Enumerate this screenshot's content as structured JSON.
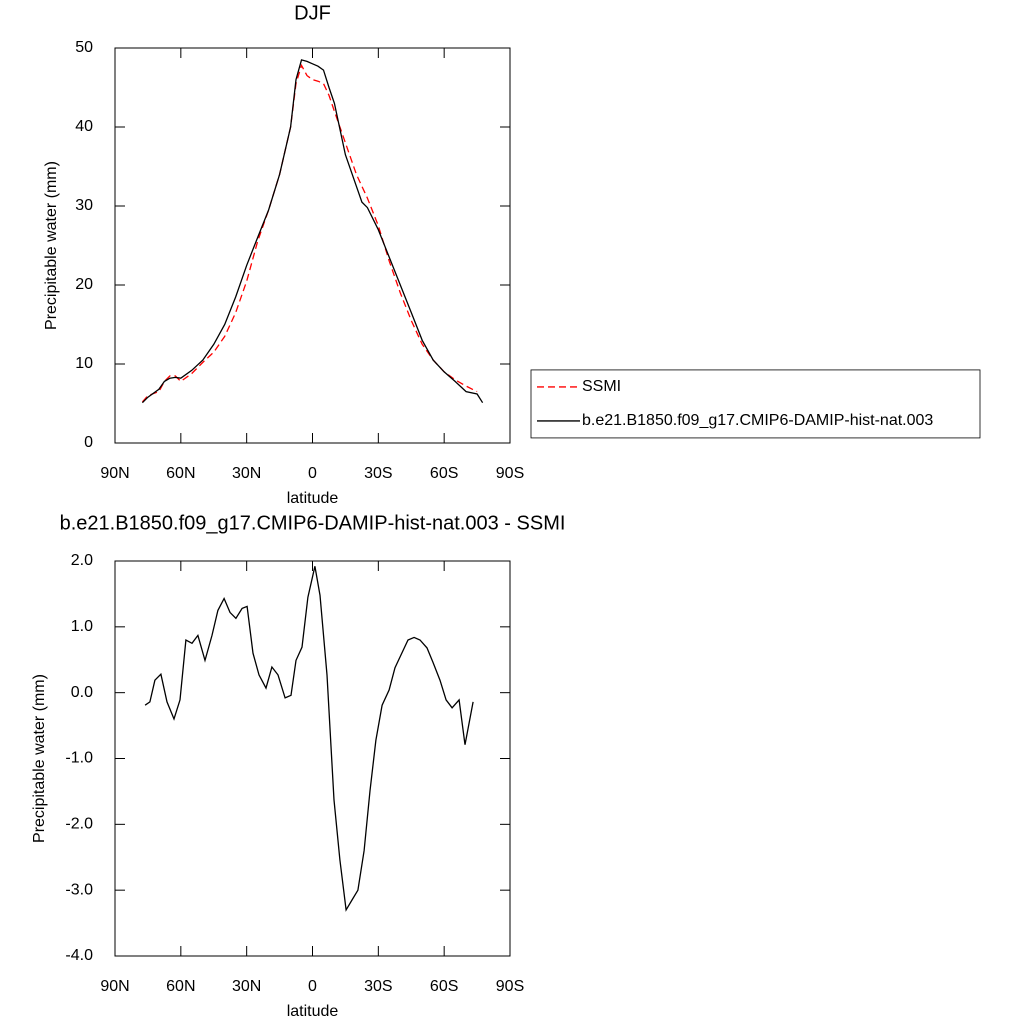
{
  "chart_data": [
    {
      "type": "line",
      "title": "DJF",
      "xlabel": "latitude",
      "ylabel": "Precipitable water (mm)",
      "x": [
        77.5,
        75,
        70,
        67.5,
        65,
        62.5,
        60,
        55,
        50,
        45,
        40,
        35,
        30,
        25,
        20,
        15,
        10,
        7.5,
        5,
        2.5,
        0,
        -2.5,
        -5,
        -7.5,
        -10,
        -15,
        -20,
        -22.5,
        -25,
        -30,
        -35,
        -40,
        -45,
        -50,
        -55,
        -60,
        -65,
        -70,
        -75,
        -77.5
      ],
      "series": [
        {
          "name": "SSMI",
          "color": "#ff0000",
          "dashed": true,
          "values": [
            5.2,
            6.0,
            6.5,
            7.8,
            8.5,
            8.5,
            7.8,
            8.8,
            10.2,
            11.5,
            13.5,
            16.5,
            20.5,
            25.5,
            29.5,
            34,
            40,
            45.5,
            47.8,
            46.5,
            46,
            45.8,
            45.5,
            44,
            42,
            38,
            34,
            32.5,
            31,
            27.5,
            23,
            19,
            15.5,
            12.5,
            10.5,
            9,
            8,
            7.2,
            6.5,
            null
          ]
        },
        {
          "name": "b.e21.B1850.f09_g17.CMIP6-DAMIP-hist-nat.003",
          "color": "#000000",
          "dashed": false,
          "values": [
            5.1,
            5.8,
            6.8,
            7.8,
            8.2,
            8.3,
            8.2,
            9.2,
            10.5,
            12.5,
            15,
            18.5,
            22.5,
            26,
            29.5,
            34,
            40,
            46,
            48.5,
            48.3,
            48,
            47.7,
            47.2,
            45,
            43,
            36.5,
            32.5,
            30.5,
            29.8,
            27,
            23.5,
            20,
            16.5,
            13,
            10.5,
            9,
            7.8,
            6.5,
            6.2,
            5.1
          ]
        }
      ],
      "xlim": [
        90,
        -90
      ],
      "xticks": [
        {
          "value": 90,
          "label": "90N"
        },
        {
          "value": 60,
          "label": "60N"
        },
        {
          "value": 30,
          "label": "30N"
        },
        0,
        {
          "value": -30,
          "label": "30S"
        },
        {
          "value": -60,
          "label": "60S"
        },
        {
          "value": -90,
          "label": "90S"
        }
      ],
      "ylim": [
        0,
        50
      ],
      "yticks": [
        0,
        10,
        20,
        30,
        40,
        50
      ],
      "legend": "right"
    },
    {
      "type": "line",
      "title": "b.e21.B1850.f09_g17.CMIP6-DAMIP-hist-nat.003 - SSMI",
      "xlabel": "latitude",
      "ylabel": "Precipitable water (mm)",
      "x": [
        76.3,
        74.1,
        71.8,
        69.1,
        66.3,
        63.1,
        60.4,
        57.7,
        54.9,
        52.2,
        49.0,
        45.8,
        43.1,
        40.3,
        37.6,
        34.9,
        32.1,
        29.8,
        27.1,
        24.4,
        21.2,
        18.5,
        15.7,
        12.5,
        9.8,
        7.5,
        4.8,
        2.1,
        -1.1,
        -3.4,
        -6.6,
        -9.8,
        -12.5,
        -15.3,
        -18.0,
        -20.7,
        -23.5,
        -26.2,
        -28.9,
        -31.7,
        -34.9,
        -37.6,
        -40.3,
        -43.5,
        -46.3,
        -49.0,
        -52.2,
        -54.9,
        -58.1,
        -60.9,
        -63.6,
        -66.8,
        -69.5,
        -73.2
      ],
      "values": [
        -0.19,
        -0.14,
        0.19,
        0.28,
        -0.14,
        -0.4,
        -0.11,
        0.8,
        0.75,
        0.87,
        0.49,
        0.87,
        1.25,
        1.43,
        1.22,
        1.13,
        1.28,
        1.31,
        0.6,
        0.27,
        0.07,
        0.39,
        0.27,
        -0.08,
        -0.04,
        0.49,
        0.69,
        1.45,
        1.92,
        1.48,
        0.27,
        -1.63,
        -2.54,
        -3.3,
        -3.15,
        -3.0,
        -2.4,
        -1.49,
        -0.72,
        -0.19,
        0.04,
        0.38,
        0.57,
        0.8,
        0.84,
        0.8,
        0.68,
        0.46,
        0.19,
        -0.11,
        -0.23,
        -0.11,
        -0.79,
        -0.14
      ],
      "color": "#000000",
      "xlim": [
        90,
        -90
      ],
      "xticks": [
        {
          "value": 90,
          "label": "90N"
        },
        {
          "value": 60,
          "label": "60N"
        },
        {
          "value": 30,
          "label": "30N"
        },
        0,
        {
          "value": -30,
          "label": "30S"
        },
        {
          "value": -60,
          "label": "60S"
        },
        {
          "value": -90,
          "label": "90S"
        }
      ],
      "ylim": [
        -4,
        2
      ],
      "yticks": [
        {
          "value": -4,
          "label": "-4.0"
        },
        {
          "value": -3,
          "label": "-3.0"
        },
        {
          "value": -2,
          "label": "-2.0"
        },
        {
          "value": -1,
          "label": "-1.0"
        },
        {
          "value": 0,
          "label": "0.0"
        },
        {
          "value": 1,
          "label": "1.0"
        },
        {
          "value": 2,
          "label": "2.0"
        }
      ]
    }
  ]
}
